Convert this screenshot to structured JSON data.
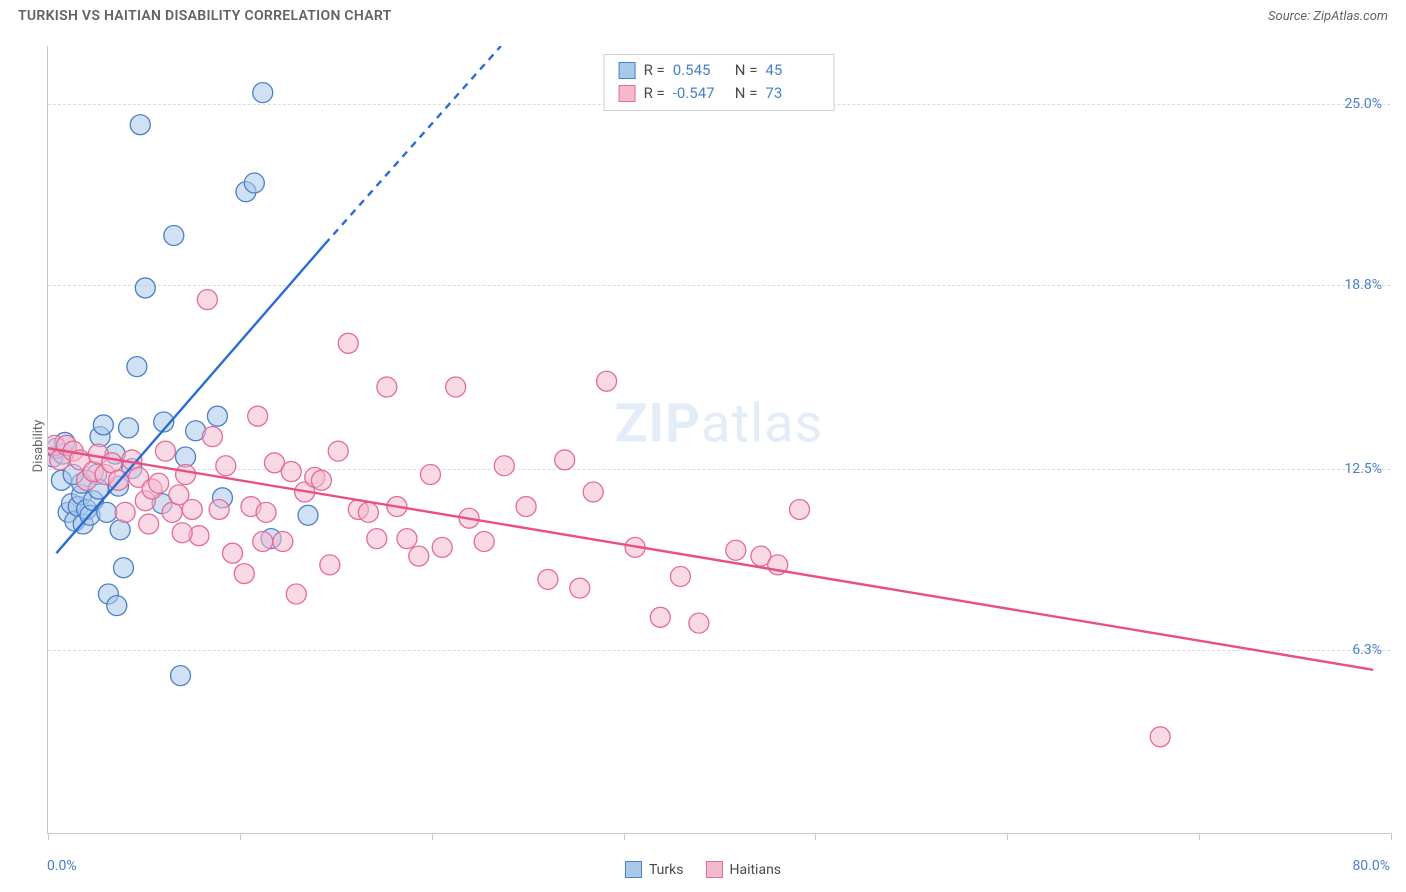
{
  "title": "TURKISH VS HAITIAN DISABILITY CORRELATION CHART",
  "source": "Source: ZipAtlas.com",
  "ylabel": "Disability",
  "watermark_bold": "ZIP",
  "watermark_light": "atlas",
  "chart": {
    "type": "scatter",
    "xlim": [
      0,
      80
    ],
    "ylim": [
      0,
      27
    ],
    "background_color": "#ffffff",
    "grid_color": "#dcdcdc",
    "axis_color": "#c8c8c8",
    "tick_label_color": "#4a7fc9",
    "marker_radius": 10,
    "marker_stroke_width": 1.3,
    "yticks": [
      {
        "v": 6.3,
        "label": "6.3%"
      },
      {
        "v": 12.5,
        "label": "12.5%"
      },
      {
        "v": 18.8,
        "label": "18.8%"
      },
      {
        "v": 25.0,
        "label": "25.0%"
      }
    ],
    "xticks_major": [
      0,
      11.43,
      22.86,
      34.29,
      45.71,
      57.14,
      68.57,
      80
    ],
    "xaxis_labels": {
      "left": "0.0%",
      "right": "80.0%"
    },
    "series": [
      {
        "name": "Turks",
        "fill": "#a9c9eb",
        "stroke": "#4a7fc9",
        "fill_opacity": 0.55,
        "R": "0.545",
        "N": "45",
        "trend": {
          "solid_from": [
            0.5,
            9.6
          ],
          "solid_to": [
            16.5,
            20.2
          ],
          "dash_from": [
            16.5,
            20.2
          ],
          "dash_to": [
            27,
            27
          ],
          "color": "#2a6cd4",
          "width": 2.4
        },
        "points": [
          [
            0.3,
            12.9
          ],
          [
            0.5,
            13.2
          ],
          [
            0.8,
            12.1
          ],
          [
            0.9,
            13.0
          ],
          [
            1.0,
            13.4
          ],
          [
            1.2,
            11.0
          ],
          [
            1.4,
            11.3
          ],
          [
            1.6,
            10.7
          ],
          [
            1.8,
            11.2
          ],
          [
            2.0,
            11.6
          ],
          [
            2.1,
            10.6
          ],
          [
            2.3,
            11.1
          ],
          [
            2.5,
            10.9
          ],
          [
            2.7,
            11.4
          ],
          [
            2.9,
            12.3
          ],
          [
            3.1,
            13.6
          ],
          [
            3.3,
            14.0
          ],
          [
            3.5,
            11.0
          ],
          [
            3.6,
            8.2
          ],
          [
            4.1,
            7.8
          ],
          [
            4.2,
            11.9
          ],
          [
            4.5,
            9.1
          ],
          [
            4.8,
            13.9
          ],
          [
            5.0,
            12.5
          ],
          [
            5.3,
            16.0
          ],
          [
            5.5,
            24.3
          ],
          [
            5.8,
            18.7
          ],
          [
            6.8,
            11.3
          ],
          [
            6.9,
            14.1
          ],
          [
            7.5,
            20.5
          ],
          [
            7.9,
            5.4
          ],
          [
            8.2,
            12.9
          ],
          [
            8.8,
            13.8
          ],
          [
            10.1,
            14.3
          ],
          [
            10.4,
            11.5
          ],
          [
            11.8,
            22.0
          ],
          [
            12.3,
            22.3
          ],
          [
            12.8,
            25.4
          ],
          [
            13.3,
            10.1
          ],
          [
            15.5,
            10.9
          ],
          [
            4.0,
            13.0
          ],
          [
            2.0,
            12.0
          ],
          [
            1.5,
            12.3
          ],
          [
            3.0,
            11.8
          ],
          [
            4.3,
            10.4
          ]
        ]
      },
      {
        "name": "Haitians",
        "fill": "#f4b9cf",
        "stroke": "#e66b98",
        "fill_opacity": 0.55,
        "R": "-0.547",
        "N": "73",
        "trend": {
          "solid_from": [
            0,
            13.2
          ],
          "solid_to": [
            79,
            5.6
          ],
          "color": "#e94f83",
          "width": 2.4
        },
        "points": [
          [
            0.4,
            13.3
          ],
          [
            0.7,
            12.8
          ],
          [
            1.1,
            13.3
          ],
          [
            1.5,
            13.1
          ],
          [
            1.9,
            12.8
          ],
          [
            2.3,
            12.1
          ],
          [
            2.7,
            12.4
          ],
          [
            3.0,
            13.0
          ],
          [
            3.4,
            12.3
          ],
          [
            3.8,
            12.7
          ],
          [
            4.2,
            12.1
          ],
          [
            4.6,
            11.0
          ],
          [
            5.0,
            12.8
          ],
          [
            5.4,
            12.2
          ],
          [
            5.8,
            11.4
          ],
          [
            6.2,
            11.8
          ],
          [
            6.6,
            12.0
          ],
          [
            7.0,
            13.1
          ],
          [
            7.4,
            11.0
          ],
          [
            7.8,
            11.6
          ],
          [
            8.2,
            12.3
          ],
          [
            8.6,
            11.1
          ],
          [
            9.0,
            10.2
          ],
          [
            9.5,
            18.3
          ],
          [
            9.8,
            13.6
          ],
          [
            10.2,
            11.1
          ],
          [
            10.6,
            12.6
          ],
          [
            11.0,
            9.6
          ],
          [
            11.7,
            8.9
          ],
          [
            12.1,
            11.2
          ],
          [
            12.5,
            14.3
          ],
          [
            13.0,
            11.0
          ],
          [
            13.5,
            12.7
          ],
          [
            14.0,
            10.0
          ],
          [
            14.5,
            12.4
          ],
          [
            14.8,
            8.2
          ],
          [
            15.3,
            11.7
          ],
          [
            15.9,
            12.2
          ],
          [
            16.3,
            12.1
          ],
          [
            16.8,
            9.2
          ],
          [
            17.3,
            13.1
          ],
          [
            17.9,
            16.8
          ],
          [
            18.5,
            11.1
          ],
          [
            19.1,
            11.0
          ],
          [
            19.6,
            10.1
          ],
          [
            20.2,
            15.3
          ],
          [
            20.8,
            11.2
          ],
          [
            21.4,
            10.1
          ],
          [
            22.1,
            9.5
          ],
          [
            22.8,
            12.3
          ],
          [
            23.5,
            9.8
          ],
          [
            24.3,
            15.3
          ],
          [
            25.1,
            10.8
          ],
          [
            26.0,
            10.0
          ],
          [
            27.2,
            12.6
          ],
          [
            28.5,
            11.2
          ],
          [
            29.8,
            8.7
          ],
          [
            30.8,
            12.8
          ],
          [
            31.7,
            8.4
          ],
          [
            32.5,
            11.7
          ],
          [
            33.3,
            15.5
          ],
          [
            35.0,
            9.8
          ],
          [
            36.5,
            7.4
          ],
          [
            37.7,
            8.8
          ],
          [
            38.8,
            7.2
          ],
          [
            41.0,
            9.7
          ],
          [
            42.5,
            9.5
          ],
          [
            43.5,
            9.2
          ],
          [
            44.8,
            11.1
          ],
          [
            66.3,
            3.3
          ],
          [
            6.0,
            10.6
          ],
          [
            8.0,
            10.3
          ],
          [
            12.8,
            10.0
          ]
        ]
      }
    ]
  },
  "legend_top": {
    "r_label": "R =",
    "n_label": "N ="
  },
  "legend_bottom_series": [
    "Turks",
    "Haitians"
  ]
}
